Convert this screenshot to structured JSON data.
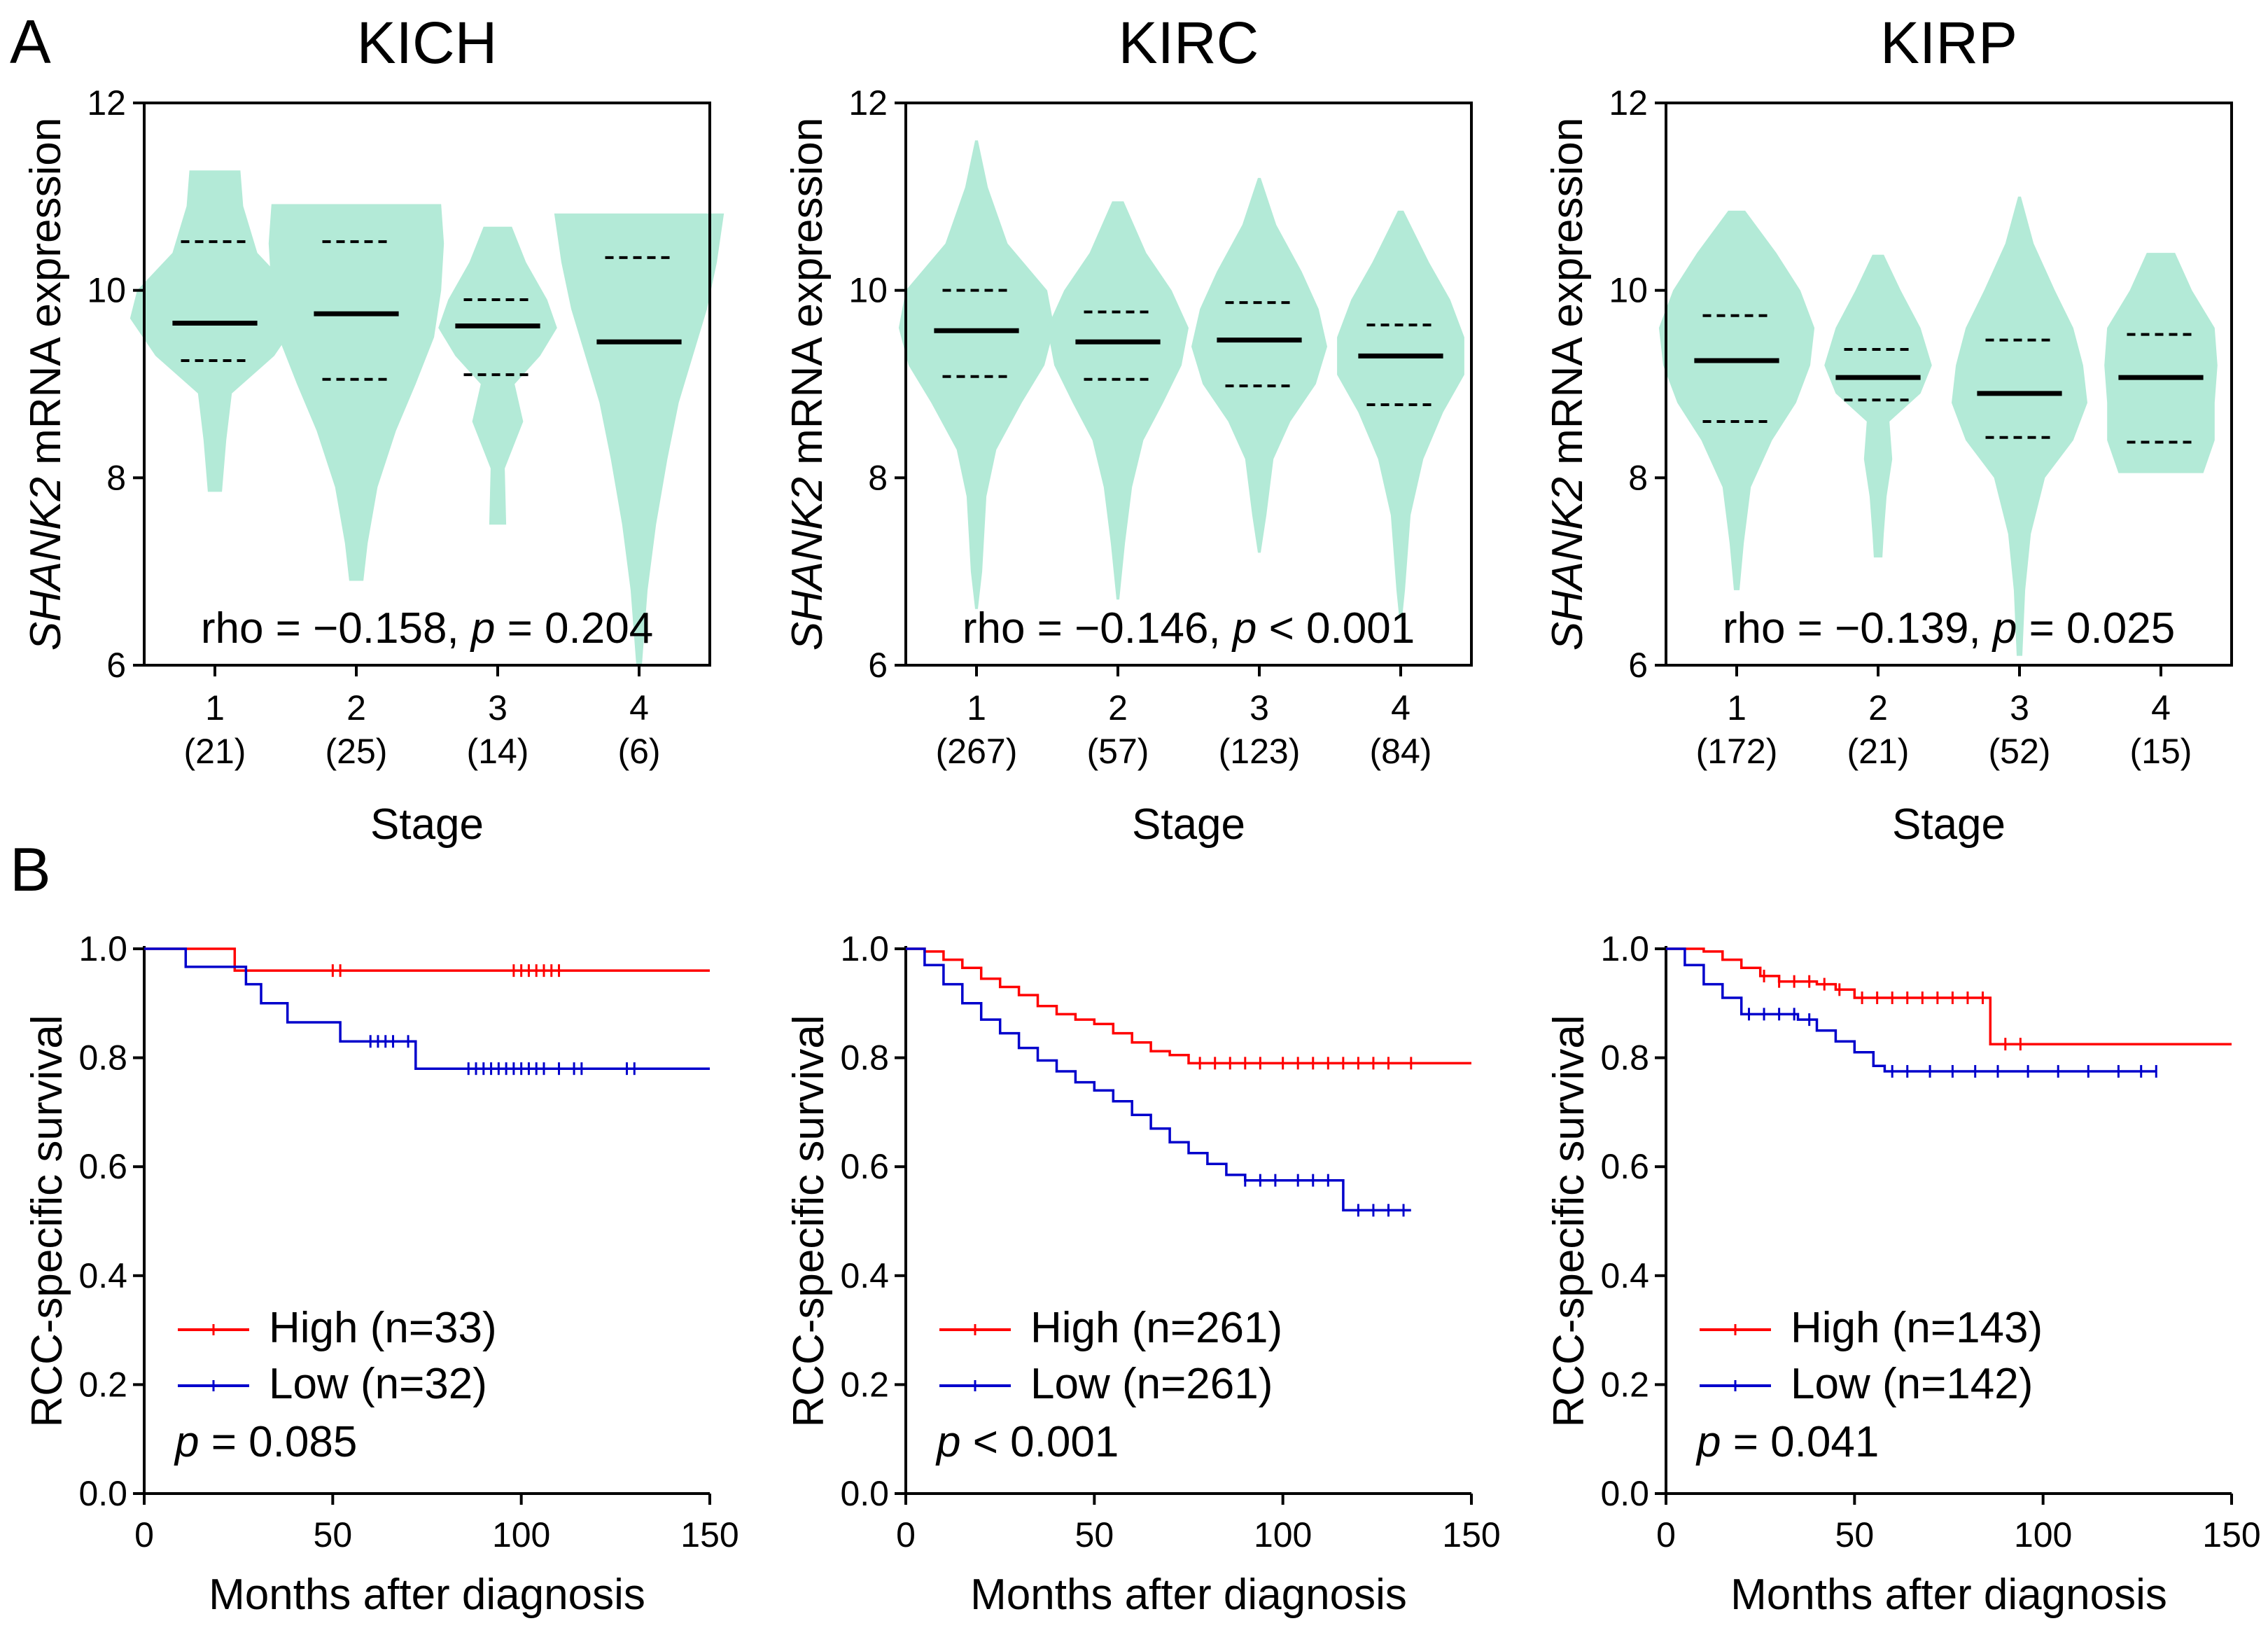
{
  "panels": {
    "a": "A",
    "b": "B"
  },
  "violin_ylabel_gene": "SHANK2",
  "violin_ylabel_rest": " mRNA expression",
  "km_ylabel": "RCC-specific survival",
  "colors": {
    "violin_fill": "#b3ead7",
    "high": "#ff0000",
    "low": "#0000cc"
  },
  "chart_data": [
    {
      "type": "violin",
      "title": "KICH",
      "xlabel": "Stage",
      "ylim": [
        6,
        12
      ],
      "yticks": [
        "6",
        "8",
        "10",
        "12"
      ],
      "categories": [
        "1",
        "2",
        "3",
        "4"
      ],
      "counts": [
        "(21)",
        "(25)",
        "(14)",
        "(6)"
      ],
      "medians": [
        9.65,
        9.75,
        9.62,
        9.45
      ],
      "q1": [
        9.25,
        9.05,
        9.1,
        null
      ],
      "q3": [
        10.52,
        10.52,
        9.9,
        10.35
      ],
      "stat": {
        "prefix": "rho = −0.158, ",
        "p": "p",
        "suffix": " = 0.204"
      }
    },
    {
      "type": "violin",
      "title": "KIRC",
      "xlabel": "Stage",
      "ylim": [
        6,
        12
      ],
      "yticks": [
        "6",
        "8",
        "10",
        "12"
      ],
      "categories": [
        "1",
        "2",
        "3",
        "4"
      ],
      "counts": [
        "(267)",
        "(57)",
        "(123)",
        "(84)"
      ],
      "medians": [
        9.57,
        9.45,
        9.47,
        9.3
      ],
      "q1": [
        9.08,
        9.05,
        8.98,
        8.78
      ],
      "q3": [
        10.0,
        9.77,
        9.87,
        9.63
      ],
      "stat": {
        "prefix": "rho = −0.146, ",
        "p": "p",
        "suffix": " < 0.001"
      }
    },
    {
      "type": "violin",
      "title": "KIRP",
      "xlabel": "Stage",
      "ylim": [
        6,
        12
      ],
      "yticks": [
        "6",
        "8",
        "10",
        "12"
      ],
      "categories": [
        "1",
        "2",
        "3",
        "4"
      ],
      "counts": [
        "(172)",
        "(21)",
        "(52)",
        "(15)"
      ],
      "medians": [
        9.25,
        9.07,
        8.9,
        9.07
      ],
      "q1": [
        8.6,
        8.83,
        8.43,
        8.38
      ],
      "q3": [
        9.73,
        9.37,
        9.47,
        9.53
      ],
      "stat": {
        "prefix": "rho = −0.139, ",
        "p": "p",
        "suffix": " = 0.025"
      }
    },
    {
      "type": "line",
      "subtype": "kaplan-meier",
      "xlabel": "Months after diagnosis",
      "xlim": [
        0,
        150
      ],
      "ylim": [
        0,
        1
      ],
      "xticks": [
        "0",
        "50",
        "100",
        "150"
      ],
      "yticks": [
        "0.0",
        "0.2",
        "0.4",
        "0.6",
        "0.8",
        "1.0"
      ],
      "series": [
        {
          "name": "High (n=33)",
          "points": [
            [
              0,
              1.0
            ],
            [
              24,
              1.0
            ],
            [
              24,
              0.96
            ],
            [
              150,
              0.96
            ]
          ],
          "censor": [
            50,
            52,
            98,
            100,
            102,
            104,
            106,
            108,
            110
          ]
        },
        {
          "name": "Low (n=32)",
          "points": [
            [
              0,
              1.0
            ],
            [
              11,
              1.0
            ],
            [
              11,
              0.967
            ],
            [
              27,
              0.967
            ],
            [
              27,
              0.935
            ],
            [
              31,
              0.935
            ],
            [
              31,
              0.9
            ],
            [
              38,
              0.9
            ],
            [
              38,
              0.865
            ],
            [
              52,
              0.865
            ],
            [
              52,
              0.83
            ],
            [
              72,
              0.83
            ],
            [
              72,
              0.78
            ],
            [
              150,
              0.78
            ]
          ],
          "censor": [
            60,
            62,
            64,
            66,
            70,
            86,
            88,
            90,
            92,
            94,
            96,
            98,
            100,
            102,
            104,
            106,
            110,
            114,
            116,
            128,
            130
          ]
        }
      ],
      "stat": {
        "p": "p",
        "suffix": " = 0.085"
      }
    },
    {
      "type": "line",
      "subtype": "kaplan-meier",
      "xlabel": "Months after diagnosis",
      "xlim": [
        0,
        150
      ],
      "ylim": [
        0,
        1
      ],
      "xticks": [
        "0",
        "50",
        "100",
        "150"
      ],
      "yticks": [
        "0.0",
        "0.2",
        "0.4",
        "0.6",
        "0.8",
        "1.0"
      ],
      "series": [
        {
          "name": "High (n=261)",
          "points": [
            [
              0,
              1.0
            ],
            [
              5,
              0.995
            ],
            [
              10,
              0.98
            ],
            [
              15,
              0.965
            ],
            [
              20,
              0.945
            ],
            [
              25,
              0.93
            ],
            [
              30,
              0.915
            ],
            [
              35,
              0.895
            ],
            [
              40,
              0.88
            ],
            [
              45,
              0.87
            ],
            [
              50,
              0.862
            ],
            [
              55,
              0.845
            ],
            [
              60,
              0.828
            ],
            [
              65,
              0.812
            ],
            [
              70,
              0.805
            ],
            [
              75,
              0.79
            ],
            [
              150,
              0.79
            ]
          ],
          "censor": [
            78,
            82,
            86,
            90,
            94,
            100,
            104,
            108,
            112,
            116,
            120,
            124,
            128,
            134
          ]
        },
        {
          "name": "Low (n=261)",
          "points": [
            [
              0,
              1.0
            ],
            [
              5,
              0.97
            ],
            [
              10,
              0.935
            ],
            [
              15,
              0.9
            ],
            [
              20,
              0.87
            ],
            [
              25,
              0.845
            ],
            [
              30,
              0.818
            ],
            [
              35,
              0.795
            ],
            [
              40,
              0.775
            ],
            [
              45,
              0.755
            ],
            [
              50,
              0.74
            ],
            [
              55,
              0.72
            ],
            [
              60,
              0.695
            ],
            [
              65,
              0.67
            ],
            [
              70,
              0.645
            ],
            [
              75,
              0.625
            ],
            [
              80,
              0.605
            ],
            [
              85,
              0.585
            ],
            [
              90,
              0.575
            ],
            [
              116,
              0.575
            ],
            [
              116,
              0.52
            ],
            [
              134,
              0.52
            ]
          ],
          "censor": [
            90,
            94,
            98,
            104,
            108,
            112,
            120,
            124,
            128,
            132
          ]
        }
      ],
      "stat": {
        "p": "p",
        "suffix": " < 0.001"
      }
    },
    {
      "type": "line",
      "subtype": "kaplan-meier",
      "xlabel": "Months after diagnosis",
      "xlim": [
        0,
        150
      ],
      "ylim": [
        0,
        1
      ],
      "xticks": [
        "0",
        "50",
        "100",
        "150"
      ],
      "yticks": [
        "0.0",
        "0.2",
        "0.4",
        "0.6",
        "0.8",
        "1.0"
      ],
      "series": [
        {
          "name": "High (n=143)",
          "points": [
            [
              0,
              1.0
            ],
            [
              10,
              0.995
            ],
            [
              15,
              0.98
            ],
            [
              20,
              0.965
            ],
            [
              25,
              0.95
            ],
            [
              30,
              0.94
            ],
            [
              40,
              0.935
            ],
            [
              45,
              0.925
            ],
            [
              50,
              0.91
            ],
            [
              86,
              0.91
            ],
            [
              86,
              0.825
            ],
            [
              150,
              0.825
            ]
          ],
          "censor": [
            26,
            30,
            34,
            38,
            42,
            46,
            52,
            56,
            60,
            64,
            68,
            72,
            76,
            80,
            84,
            90,
            94
          ]
        },
        {
          "name": "Low (n=142)",
          "points": [
            [
              0,
              1.0
            ],
            [
              5,
              0.97
            ],
            [
              10,
              0.935
            ],
            [
              15,
              0.91
            ],
            [
              20,
              0.88
            ],
            [
              35,
              0.87
            ],
            [
              40,
              0.85
            ],
            [
              45,
              0.83
            ],
            [
              50,
              0.81
            ],
            [
              55,
              0.785
            ],
            [
              58,
              0.775
            ],
            [
              130,
              0.775
            ]
          ],
          "censor": [
            22,
            26,
            30,
            34,
            38,
            60,
            64,
            70,
            76,
            82,
            88,
            96,
            104,
            112,
            120,
            126,
            130
          ]
        }
      ],
      "stat": {
        "p": "p",
        "suffix": " = 0.041"
      }
    }
  ]
}
